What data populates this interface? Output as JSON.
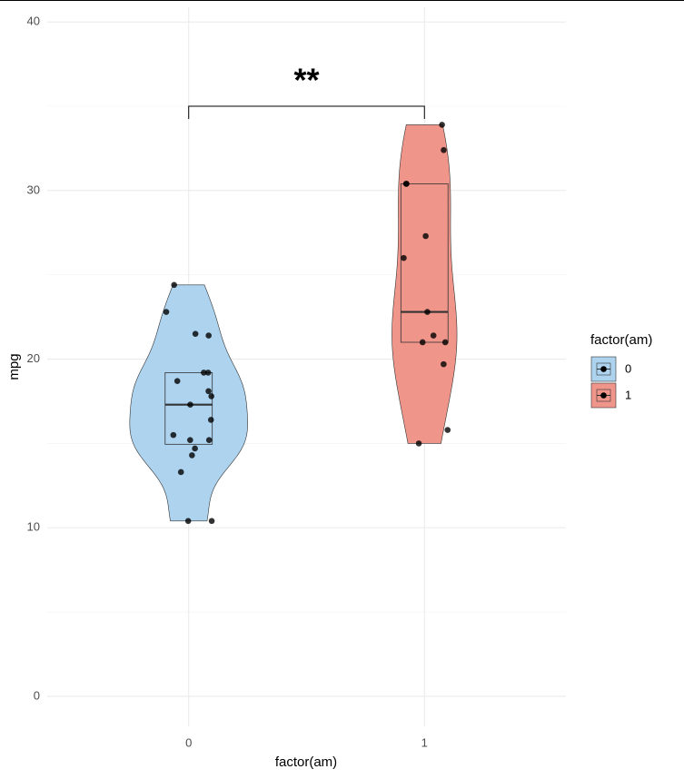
{
  "chart_data": {
    "type": "violin",
    "x_label": "factor(am)",
    "y_label": "mpg",
    "categories": [
      "0",
      "1"
    ],
    "ylim": [
      -1.78,
      40.87
    ],
    "yticks": [
      0,
      10,
      20,
      30,
      40
    ],
    "minor_yticks": [
      5,
      15,
      25,
      35
    ],
    "grid": true,
    "legend_title": "factor(am)",
    "legend_position": "right",
    "series": [
      {
        "name": "0",
        "color": "#add3ef",
        "values": [
          21.4,
          18.7,
          18.1,
          14.3,
          24.4,
          22.8,
          19.2,
          17.8,
          16.4,
          17.3,
          15.2,
          10.4,
          10.4,
          14.7,
          21.5,
          15.5,
          15.2,
          13.3,
          19.2
        ],
        "box": {
          "lower": 14.95,
          "middle": 17.3,
          "upper": 19.2
        }
      },
      {
        "name": "1",
        "color": "#f0958a",
        "values": [
          21.0,
          21.0,
          22.8,
          32.4,
          30.4,
          33.9,
          27.3,
          26.0,
          30.4,
          15.8,
          19.7,
          15.0,
          21.4
        ],
        "box": {
          "lower": 21.0,
          "middle": 22.8,
          "upper": 30.4
        }
      }
    ],
    "annotation": {
      "label": "**",
      "y": 35
    }
  }
}
